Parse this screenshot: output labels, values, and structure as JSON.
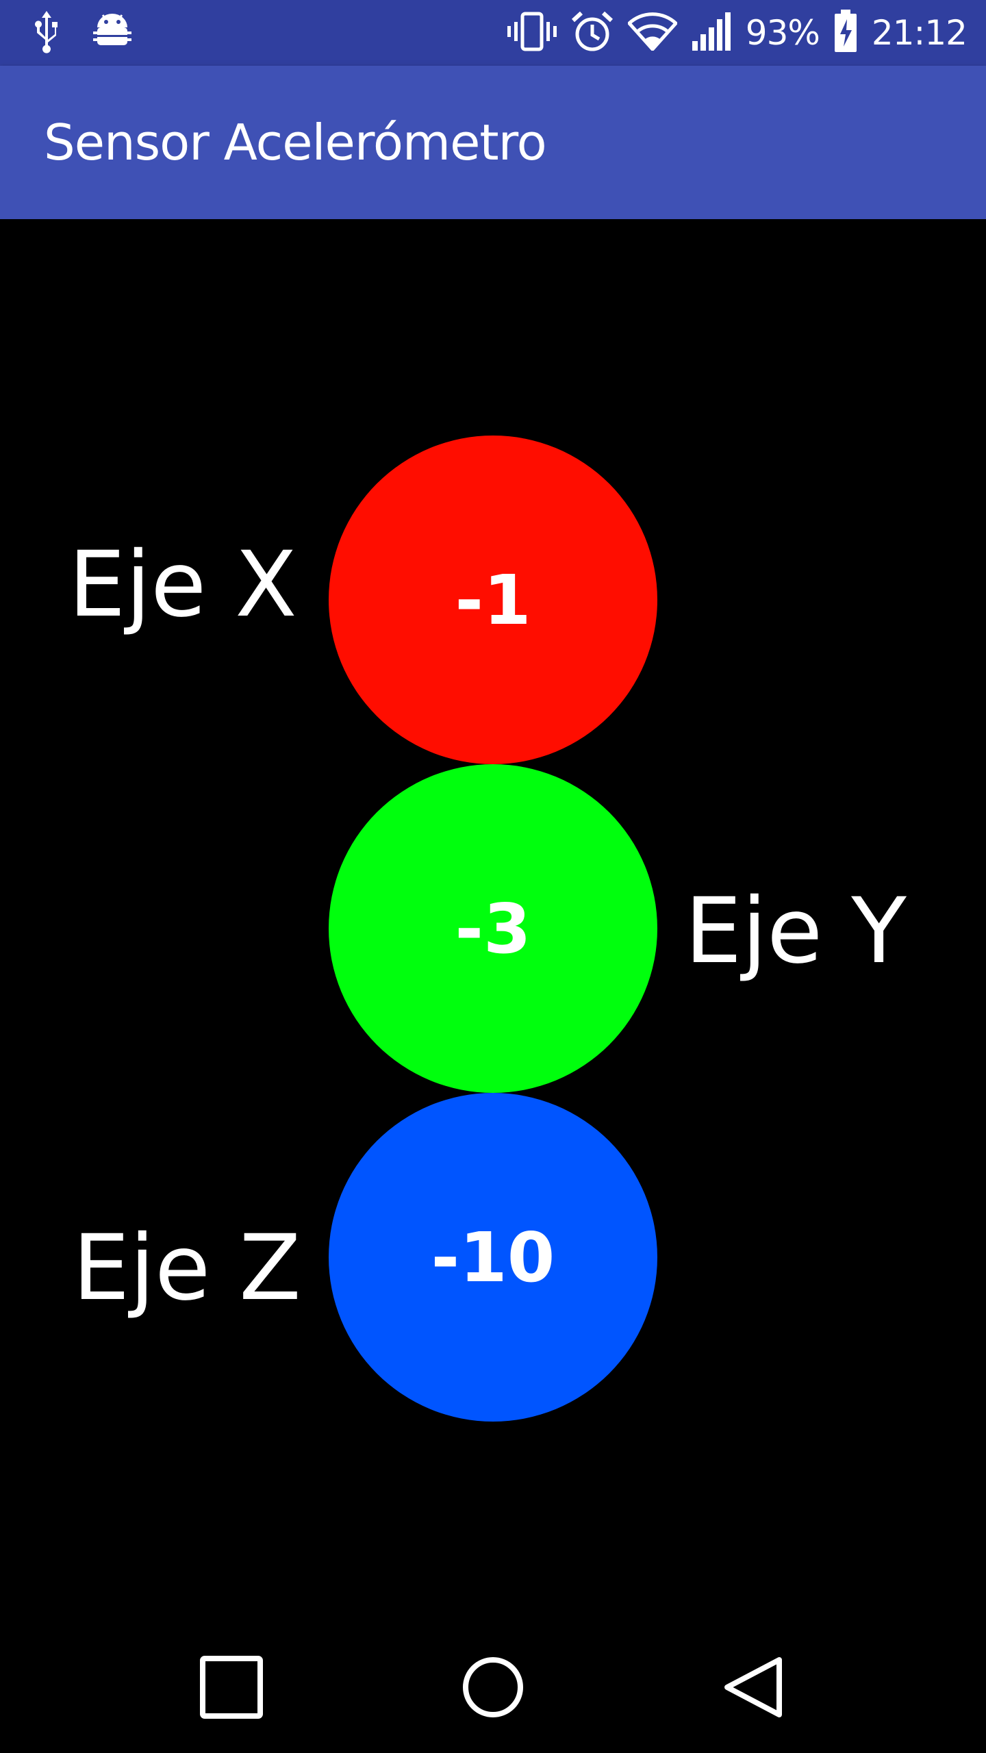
{
  "status_bar": {
    "left_icons": [
      "usb-icon",
      "android-debug-icon"
    ],
    "right_icons": [
      "vibrate-icon",
      "alarm-icon",
      "wifi-icon",
      "signal-icon"
    ],
    "battery_percent": "93%",
    "battery_icon": "battery-charging-icon",
    "time": "21:12"
  },
  "app_bar": {
    "title": "Sensor Acelerómetro"
  },
  "axes": {
    "x": {
      "label": "Eje X",
      "value": "-1",
      "color": "#FF0D00"
    },
    "y": {
      "label": "Eje Y",
      "value": "-3",
      "color": "#00FF0D"
    },
    "z": {
      "label": "Eje Z",
      "value": "-10",
      "color": "#0055FF"
    }
  },
  "nav_bar": {
    "buttons": [
      "recents-icon",
      "home-icon",
      "back-icon"
    ]
  },
  "colors": {
    "status_bar": "#303F9F",
    "app_bar": "#3F51B5",
    "background": "#000000"
  }
}
